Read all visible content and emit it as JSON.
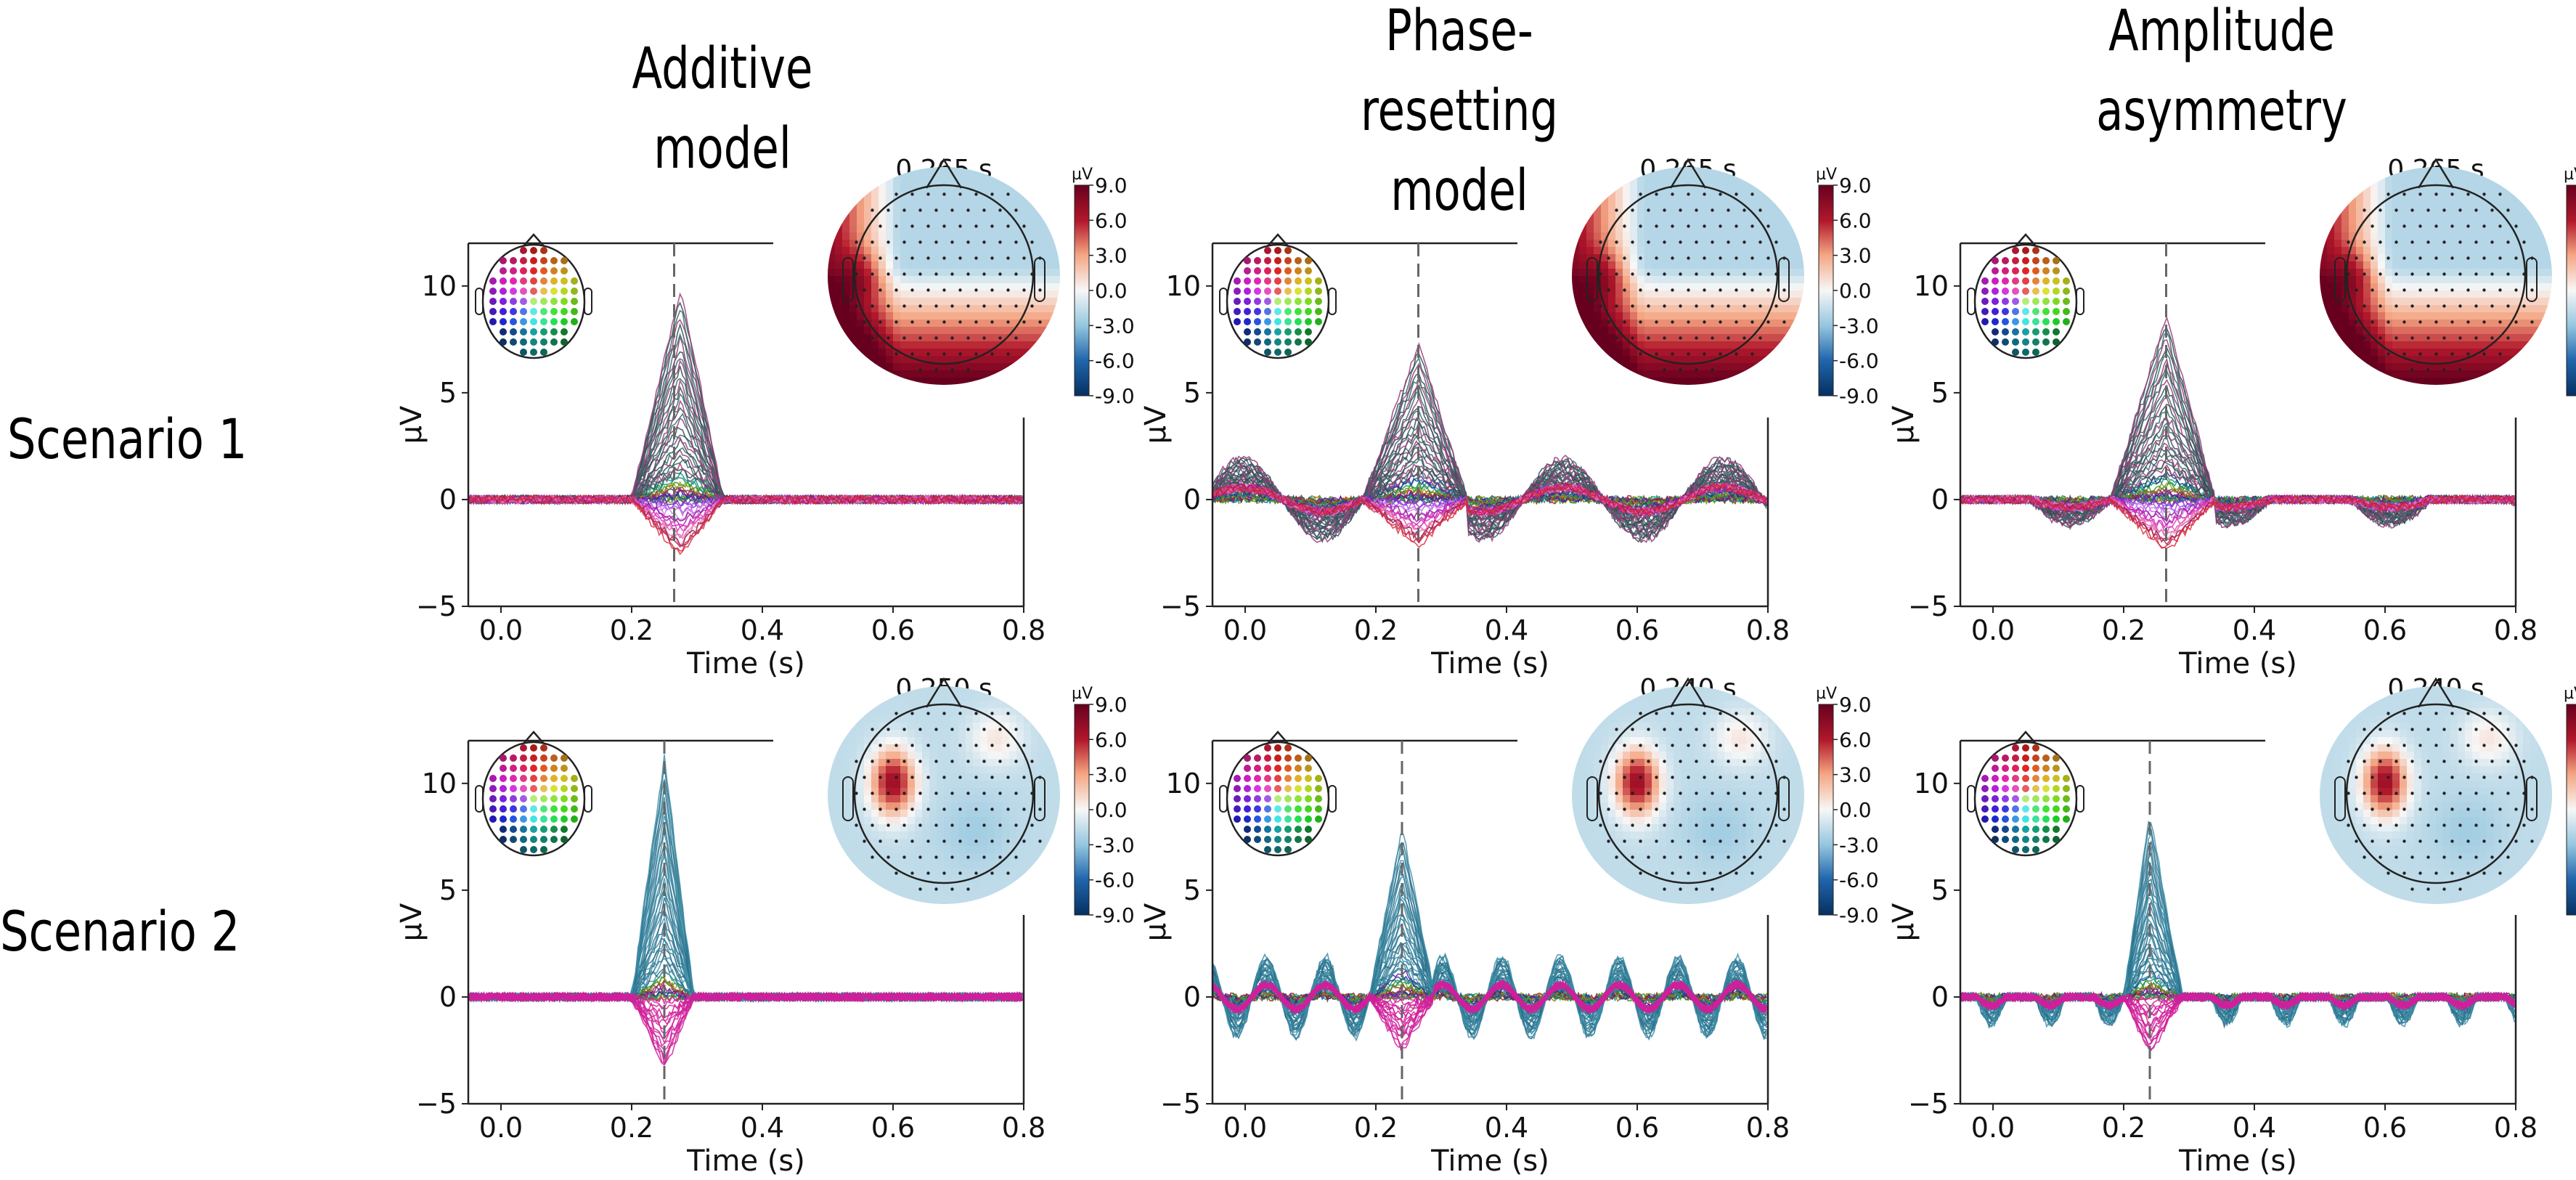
{
  "figure": {
    "column_titles": [
      {
        "lines": [
          "Additive model"
        ]
      },
      {
        "lines": [
          "Phase-resetting",
          "model"
        ]
      },
      {
        "lines": [
          "Amplitude",
          "asymmetry"
        ]
      }
    ],
    "row_labels": [
      "Scenario 1",
      "Scenario 2"
    ]
  },
  "chart_data": [
    {
      "type": "line",
      "row": "Scenario 1",
      "column": "Additive model",
      "xlabel": "Time (s)",
      "ylabel": "µV",
      "xlim": [
        -0.05,
        0.8
      ],
      "ylim": [
        -5,
        12
      ],
      "xticks": [
        "0.0",
        "0.2",
        "0.4",
        "0.6",
        "0.8"
      ],
      "xtick_values": [
        0.0,
        0.2,
        0.4,
        0.6,
        0.8
      ],
      "yticks": [
        "−5",
        "0",
        "5",
        "10"
      ],
      "ytick_values": [
        -5,
        0,
        5,
        10
      ],
      "marker_time": 0.265,
      "component": {
        "onset": 0.2,
        "offset": 0.34,
        "peak_time": 0.275,
        "max_peak": 10.0,
        "min_trough": -2.8
      },
      "oscillation": {
        "present": false,
        "amplitude": 0,
        "period": 0
      },
      "noise": 0.2,
      "topomap": {
        "title": "0.265 s",
        "pattern": "posterior-left-positive",
        "colorbar": {
          "unit": "µV",
          "ticks": [
            "9.0",
            "6.0",
            "3.0",
            "0.0",
            "-3.0",
            "-6.0",
            "-9.0"
          ],
          "range": [
            -9,
            9
          ]
        }
      }
    },
    {
      "type": "line",
      "row": "Scenario 1",
      "column": "Phase-resetting model",
      "xlabel": "Time (s)",
      "ylabel": "µV",
      "xlim": [
        -0.05,
        0.8
      ],
      "ylim": [
        -5,
        12
      ],
      "xticks": [
        "0.0",
        "0.2",
        "0.4",
        "0.6",
        "0.8"
      ],
      "xtick_values": [
        0.0,
        0.2,
        0.4,
        0.6,
        0.8
      ],
      "yticks": [
        "−5",
        "0",
        "5",
        "10"
      ],
      "ytick_values": [
        -5,
        0,
        5,
        10
      ],
      "marker_time": 0.265,
      "component": {
        "onset": 0.18,
        "offset": 0.34,
        "peak_time": 0.265,
        "max_peak": 7.3,
        "min_trough": -2.3
      },
      "oscillation": {
        "present": true,
        "amplitude": 1.9,
        "period": 0.245
      },
      "noise": 0.2,
      "topomap": {
        "title": "0.265 s",
        "pattern": "posterior-left-positive",
        "colorbar": {
          "unit": "µV",
          "ticks": [
            "9.0",
            "6.0",
            "3.0",
            "0.0",
            "-3.0",
            "-6.0",
            "-9.0"
          ],
          "range": [
            -9,
            9
          ]
        }
      }
    },
    {
      "type": "line",
      "row": "Scenario 1",
      "column": "Amplitude asymmetry",
      "xlabel": "Time (s)",
      "ylabel": "µV",
      "xlim": [
        -0.05,
        0.8
      ],
      "ylim": [
        -5,
        12
      ],
      "xticks": [
        "0.0",
        "0.2",
        "0.4",
        "0.6",
        "0.8"
      ],
      "xtick_values": [
        0.0,
        0.2,
        0.4,
        0.6,
        0.8
      ],
      "yticks": [
        "−5",
        "0",
        "5",
        "10"
      ],
      "ytick_values": [
        -5,
        0,
        5,
        10
      ],
      "marker_time": 0.265,
      "component": {
        "onset": 0.18,
        "offset": 0.34,
        "peak_time": 0.265,
        "max_peak": 8.7,
        "min_trough": -2.6
      },
      "oscillation": {
        "present": true,
        "amplitude": 1.2,
        "period": 0.245,
        "negative_only": true
      },
      "noise": 0.2,
      "topomap": {
        "title": "0.265 s",
        "pattern": "posterior-left-positive",
        "colorbar": {
          "unit": "µV",
          "ticks": [
            "9.0",
            "6.0",
            "3.0",
            "0.0",
            "-3.0",
            "-6.0",
            "-9.0"
          ],
          "range": [
            -9,
            9
          ]
        }
      }
    },
    {
      "type": "line",
      "row": "Scenario 2",
      "column": "Additive model",
      "xlabel": "Time (s)",
      "ylabel": "µV",
      "xlim": [
        -0.05,
        0.8
      ],
      "ylim": [
        -5,
        12
      ],
      "xticks": [
        "0.0",
        "0.2",
        "0.4",
        "0.6",
        "0.8"
      ],
      "xtick_values": [
        0.0,
        0.2,
        0.4,
        0.6,
        0.8
      ],
      "yticks": [
        "−5",
        "0",
        "5",
        "10"
      ],
      "ytick_values": [
        -5,
        0,
        5,
        10
      ],
      "marker_time": 0.25,
      "component": {
        "onset": 0.2,
        "offset": 0.295,
        "peak_time": 0.25,
        "max_peak": 11.3,
        "min_trough": -3.6
      },
      "oscillation": {
        "present": false,
        "amplitude": 0,
        "period": 0
      },
      "noise": 0.2,
      "topomap": {
        "title": "0.250 s",
        "pattern": "left-temporal-focal",
        "colorbar": {
          "unit": "µV",
          "ticks": [
            "9.0",
            "6.0",
            "3.0",
            "0.0",
            "-3.0",
            "-6.0",
            "-9.0"
          ],
          "range": [
            -9,
            9
          ]
        }
      }
    },
    {
      "type": "line",
      "row": "Scenario 2",
      "column": "Phase-resetting model",
      "xlabel": "Time (s)",
      "ylabel": "µV",
      "xlim": [
        -0.05,
        0.8
      ],
      "ylim": [
        -5,
        12
      ],
      "xticks": [
        "0.0",
        "0.2",
        "0.4",
        "0.6",
        "0.8"
      ],
      "xtick_values": [
        0.0,
        0.2,
        0.4,
        0.6,
        0.8
      ],
      "yticks": [
        "−5",
        "0",
        "5",
        "10"
      ],
      "ytick_values": [
        -5,
        0,
        5,
        10
      ],
      "marker_time": 0.24,
      "component": {
        "onset": 0.19,
        "offset": 0.29,
        "peak_time": 0.24,
        "max_peak": 8.0,
        "min_trough": -2.7
      },
      "oscillation": {
        "present": true,
        "amplitude": 1.9,
        "period": 0.09
      },
      "noise": 0.2,
      "topomap": {
        "title": "0.240 s",
        "pattern": "left-temporal-focal",
        "colorbar": {
          "unit": "µV",
          "ticks": [
            "9.0",
            "6.0",
            "3.0",
            "0.0",
            "-3.0",
            "-6.0",
            "-9.0"
          ],
          "range": [
            -9,
            9
          ]
        }
      }
    },
    {
      "type": "line",
      "row": "Scenario 2",
      "column": "Amplitude asymmetry",
      "xlabel": "Time (s)",
      "ylabel": "µV",
      "xlim": [
        -0.05,
        0.8
      ],
      "ylim": [
        -5,
        12
      ],
      "xticks": [
        "0.0",
        "0.2",
        "0.4",
        "0.6",
        "0.8"
      ],
      "xtick_values": [
        0.0,
        0.2,
        0.4,
        0.6,
        0.8
      ],
      "yticks": [
        "−5",
        "0",
        "5",
        "10"
      ],
      "ytick_values": [
        -5,
        0,
        5,
        10
      ],
      "marker_time": 0.24,
      "component": {
        "onset": 0.2,
        "offset": 0.29,
        "peak_time": 0.24,
        "max_peak": 8.6,
        "min_trough": -2.9
      },
      "oscillation": {
        "present": true,
        "amplitude": 1.3,
        "period": 0.09,
        "negative_only": true
      },
      "noise": 0.2,
      "topomap": {
        "title": "0.240 s",
        "pattern": "left-temporal-focal",
        "colorbar": {
          "unit": "µV",
          "ticks": [
            "9.0",
            "6.0",
            "3.0",
            "0.0",
            "-3.0",
            "-6.0",
            "-9.0"
          ],
          "range": [
            -9,
            9
          ]
        }
      }
    }
  ],
  "colors": {
    "axis": "#222222",
    "marker_line": "#666666",
    "cmap_neg": "#053061",
    "cmap_mid": "#f7f7f7",
    "cmap_pos": "#67001f",
    "scenario1_trace_dark": "#2f4f4f",
    "scenario1_trace_pos": "#a0407a",
    "scenario2_trace_pos": "#3a8aa0",
    "scenario2_trace_neg": "#d0209a"
  }
}
